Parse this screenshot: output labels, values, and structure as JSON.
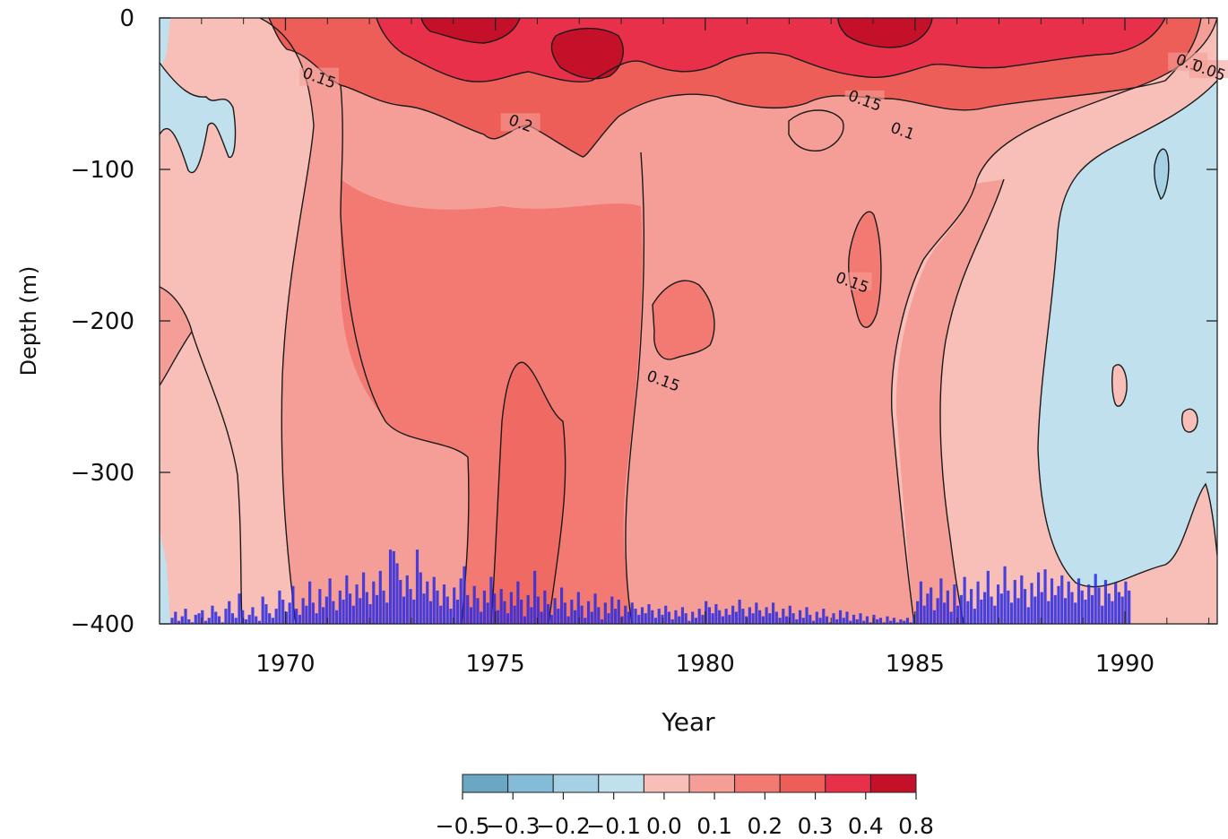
{
  "chart_data": {
    "type": "heatmap",
    "title": "",
    "xlabel": "Year",
    "ylabel": "Depth (m)",
    "xlim": [
      1967,
      1992.2
    ],
    "ylim": [
      -400,
      0
    ],
    "x_ticks": [
      1970,
      1975,
      1980,
      1985,
      1990
    ],
    "x_tick_labels": [
      "1970",
      "1975",
      "1980",
      "1985",
      "1990"
    ],
    "y_ticks": [
      0,
      -100,
      -200,
      -300,
      -400
    ],
    "y_tick_labels": [
      "0",
      "−100",
      "−200",
      "−300",
      "−400"
    ],
    "colorbar": {
      "levels": [
        -0.5,
        -0.3,
        -0.2,
        -0.1,
        0.0,
        0.1,
        0.2,
        0.3,
        0.4,
        0.8
      ],
      "labels": [
        "−0.5",
        "−0.3",
        "−0.2",
        "−0.1",
        "0.0",
        "0.1",
        "0.2",
        "0.3",
        "0.4",
        "0.8"
      ],
      "colors": [
        "#6aa7c2",
        "#84bbd6",
        "#a6d0e4",
        "#bfe0ec",
        "#f8bfb8",
        "#f59e98",
        "#f27a72",
        "#ee5e58",
        "#e8304a",
        "#c5102a"
      ]
    },
    "contour_labels": [
      {
        "text": "0.15",
        "x": 1970.8,
        "y": -40
      },
      {
        "text": "0.2",
        "x": 1975.6,
        "y": -70
      },
      {
        "text": "0.15",
        "x": 1983.8,
        "y": -55
      },
      {
        "text": "0.1",
        "x": 1984.7,
        "y": -75
      },
      {
        "text": "0.1",
        "x": 1991.5,
        "y": -30
      },
      {
        "text": "0.05",
        "x": 1992.0,
        "y": -35
      },
      {
        "text": "0.15",
        "x": 1983.5,
        "y": -175
      },
      {
        "text": "0.15",
        "x": 1979.0,
        "y": -240
      }
    ],
    "bar_series": {
      "name": "",
      "color": "#2a2ae0",
      "baseline": -400,
      "x_start": 1967.3,
      "x_step": 0.08,
      "values": [
        -396,
        -392,
        -398,
        -395,
        -390,
        -397,
        -399,
        -394,
        -393,
        -391,
        -398,
        -396,
        -388,
        -392,
        -395,
        -399,
        -390,
        -385,
        -393,
        -396,
        -380,
        -391,
        -397,
        -394,
        -389,
        -395,
        -398,
        -382,
        -387,
        -393,
        -396,
        -390,
        -378,
        -384,
        -392,
        -386,
        -375,
        -390,
        -394,
        -383,
        -388,
        -372,
        -386,
        -393,
        -377,
        -389,
        -382,
        -370,
        -385,
        -391,
        -378,
        -384,
        -368,
        -380,
        -388,
        -374,
        -383,
        -366,
        -379,
        -387,
        -372,
        -381,
        -365,
        -378,
        -386,
        -351,
        -352,
        -360,
        -371,
        -382,
        -368,
        -377,
        -384,
        -351,
        -366,
        -380,
        -372,
        -385,
        -369,
        -378,
        -388,
        -374,
        -382,
        -390,
        -376,
        -384,
        -370,
        -362,
        -381,
        -389,
        -375,
        -383,
        -392,
        -378,
        -386,
        -369,
        -380,
        -391,
        -377,
        -385,
        -393,
        -379,
        -388,
        -372,
        -384,
        -395,
        -381,
        -389,
        -365,
        -382,
        -392,
        -378,
        -387,
        -394,
        -383,
        -390,
        -376,
        -386,
        -395,
        -384,
        -391,
        -379,
        -388,
        -396,
        -385,
        -392,
        -380,
        -389,
        -397,
        -386,
        -393,
        -382,
        -390,
        -384,
        -395,
        -388,
        -392,
        -386,
        -390,
        -394,
        -389,
        -393,
        -387,
        -391,
        -396,
        -390,
        -394,
        -388,
        -392,
        -397,
        -391,
        -395,
        -389,
        -393,
        -398,
        -392,
        -396,
        -390,
        -394,
        -385,
        -389,
        -393,
        -387,
        -391,
        -395,
        -390,
        -394,
        -388,
        -392,
        -384,
        -390,
        -395,
        -389,
        -393,
        -386,
        -391,
        -395,
        -389,
        -393,
        -386,
        -392,
        -396,
        -390,
        -395,
        -388,
        -393,
        -397,
        -391,
        -396,
        -389,
        -394,
        -398,
        -392,
        -396,
        -390,
        -395,
        -399,
        -393,
        -397,
        -391,
        -396,
        -392,
        -398,
        -394,
        -397,
        -393,
        -398,
        -395,
        -399,
        -394,
        -397,
        -396,
        -399,
        -395,
        -398,
        -396,
        -399,
        -397,
        -398,
        -396,
        -399,
        -394,
        -385,
        -372,
        -388,
        -380,
        -376,
        -391,
        -383,
        -370,
        -386,
        -378,
        -392,
        -374,
        -388,
        -381,
        -369,
        -385,
        -377,
        -390,
        -372,
        -384,
        -379,
        -365,
        -382,
        -388,
        -374,
        -380,
        -362,
        -378,
        -386,
        -371,
        -383,
        -368,
        -377,
        -389,
        -373,
        -382,
        -366,
        -379,
        -364,
        -385,
        -370,
        -381,
        -375,
        -368,
        -383,
        -372,
        -379,
        -386,
        -370,
        -378,
        -384,
        -374,
        -381,
        -367,
        -376,
        -388,
        -371,
        -380,
        -385,
        -373,
        -379,
        -382,
        -372,
        -378
      ]
    }
  }
}
